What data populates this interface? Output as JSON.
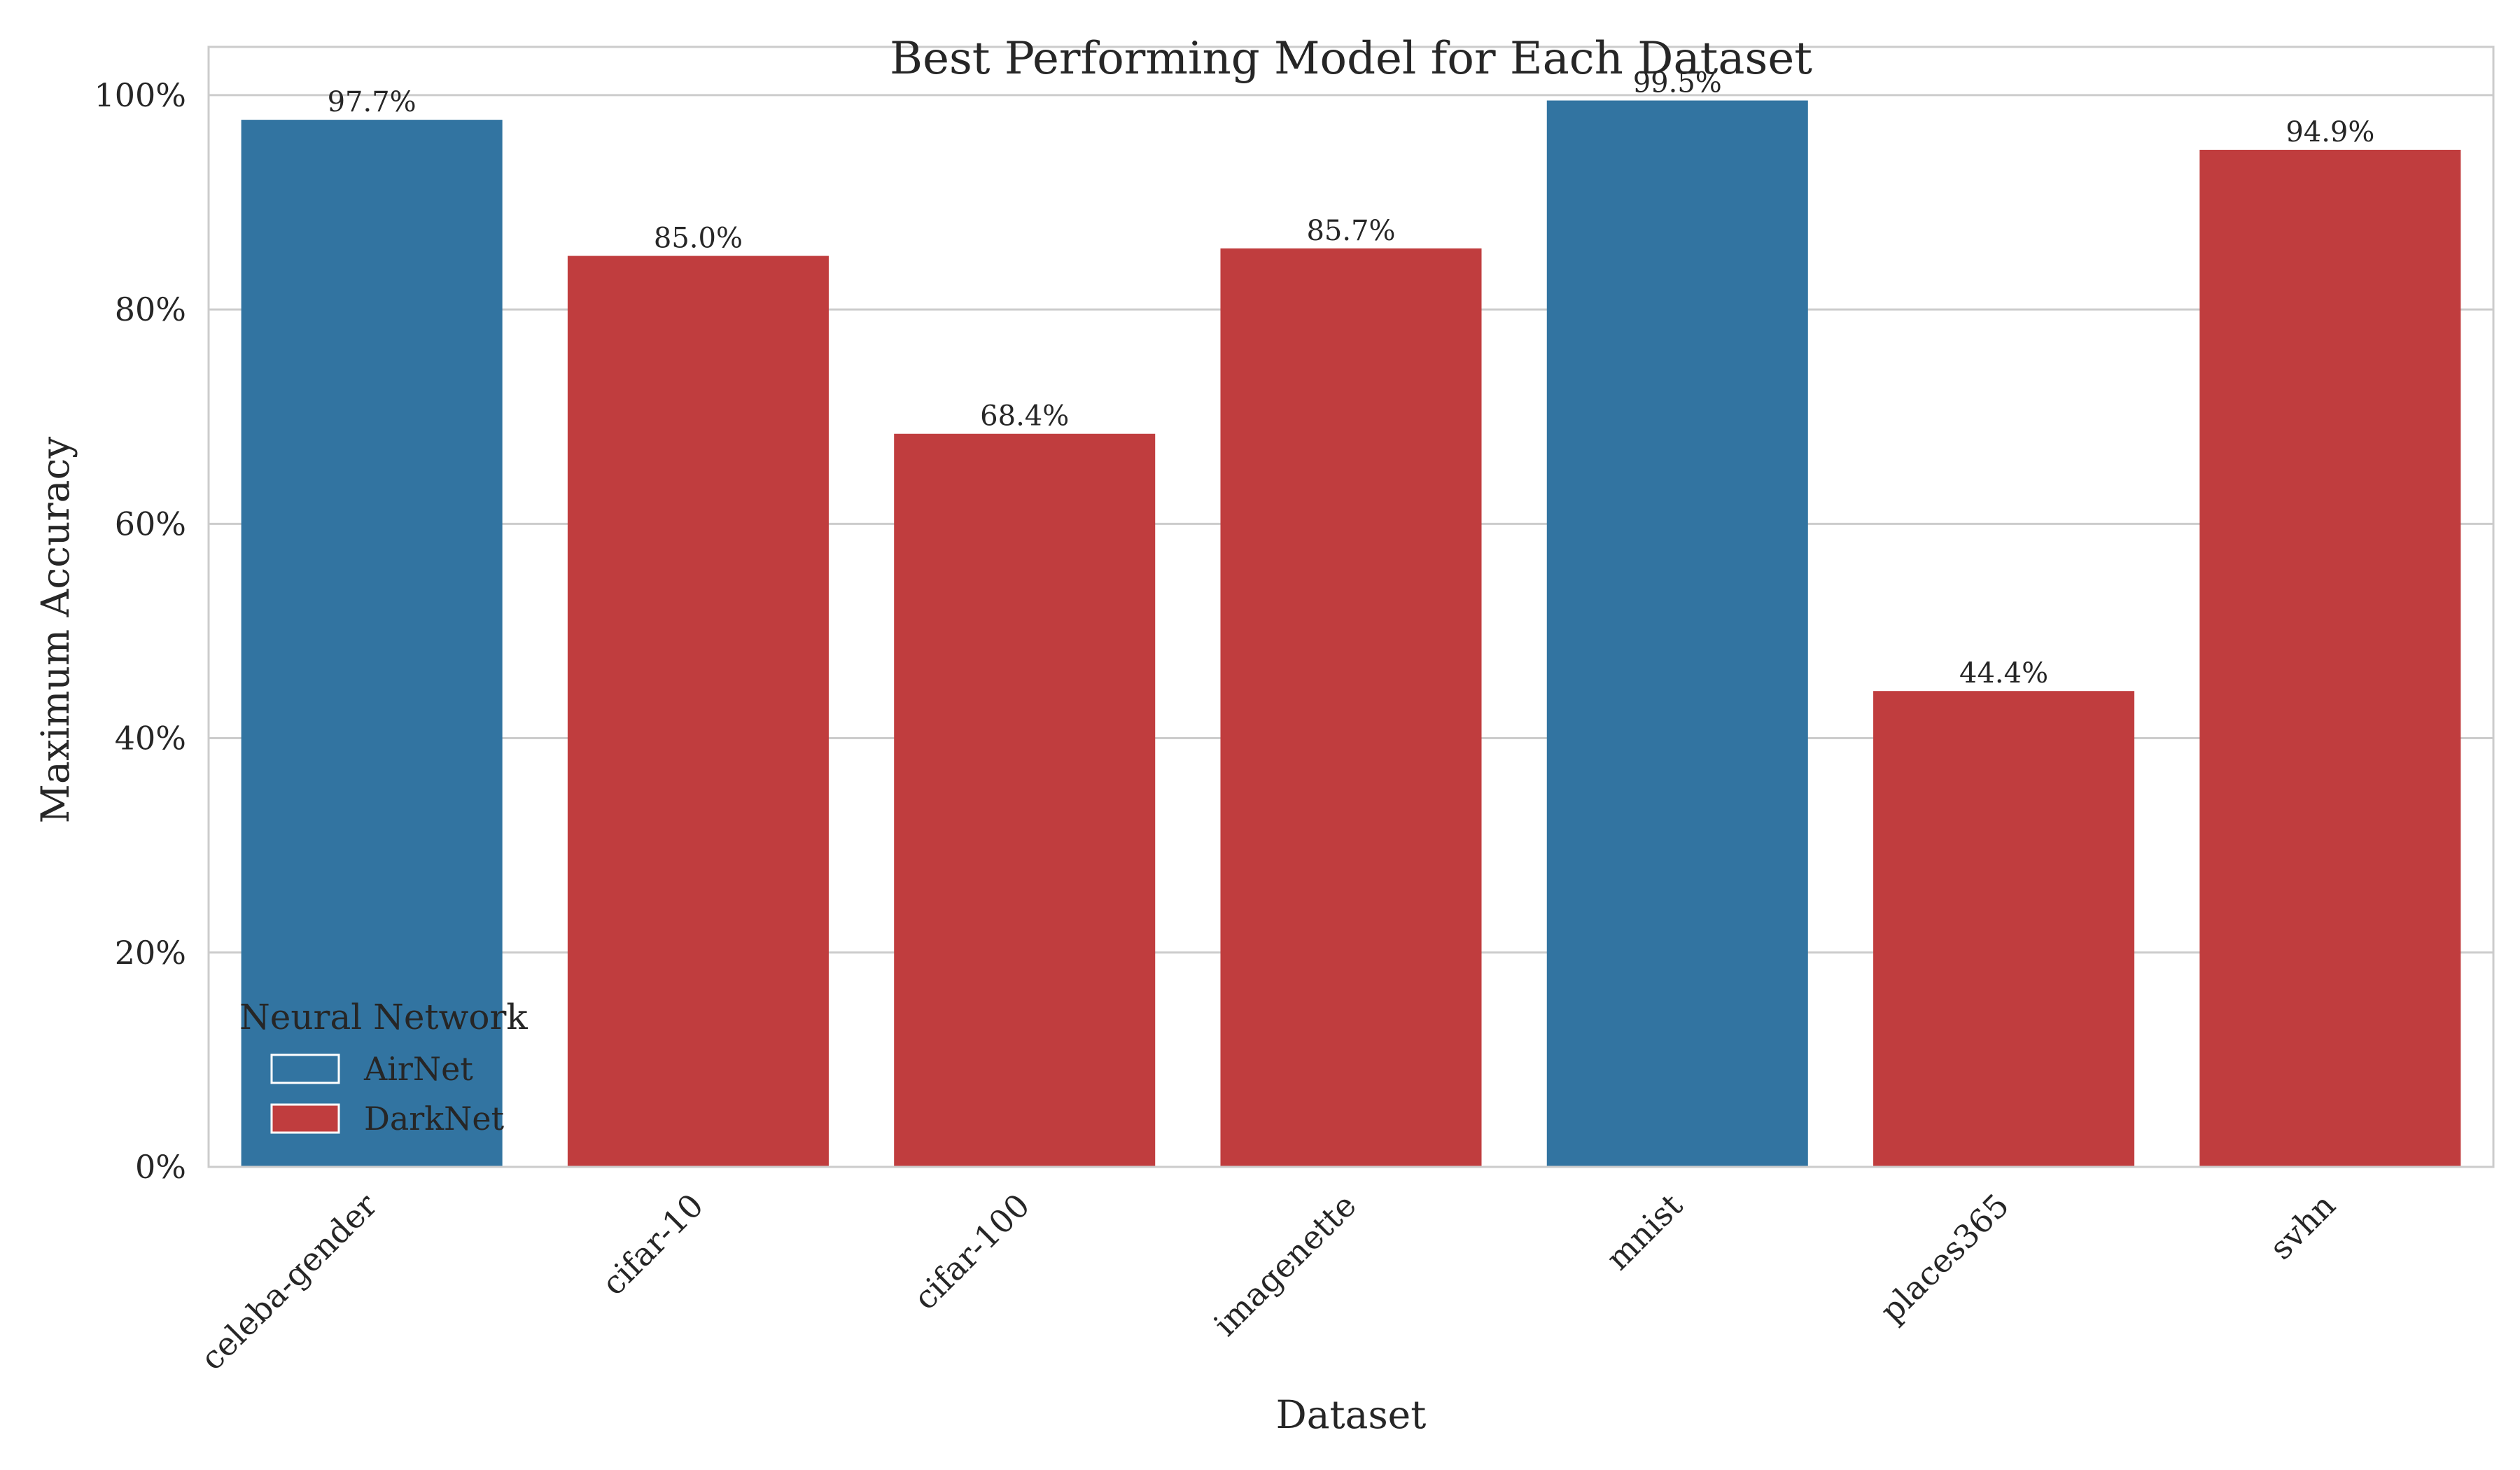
{
  "chart_data": {
    "type": "bar",
    "title": "Best Performing Model for Each Dataset",
    "xlabel": "Dataset",
    "ylabel": "Maximum Accuracy",
    "categories": [
      "celeba-gender",
      "cifar-10",
      "cifar-100",
      "imagenette",
      "mnist",
      "places365",
      "svhn"
    ],
    "values": [
      97.7,
      85.0,
      68.4,
      85.7,
      99.5,
      44.4,
      94.9
    ],
    "value_labels": [
      "97.7%",
      "85.0%",
      "68.4%",
      "85.7%",
      "99.5%",
      "44.4%",
      "94.9%"
    ],
    "bar_series": [
      "AirNet",
      "DarkNet",
      "DarkNet",
      "DarkNet",
      "AirNet",
      "DarkNet",
      "DarkNet"
    ],
    "ylim": [
      0,
      104.5
    ],
    "y_ticks": [
      0,
      20,
      40,
      60,
      80,
      100
    ],
    "y_tick_labels": [
      "0%",
      "20%",
      "40%",
      "60%",
      "80%",
      "100%"
    ],
    "grid": "horizontal",
    "legend": {
      "title": "Neural Network",
      "placement": "lower-left",
      "entries": [
        {
          "name": "AirNet",
          "color": "#3274a1"
        },
        {
          "name": "DarkNet",
          "color": "#c03d3e"
        }
      ]
    },
    "colors": {
      "AirNet": "#3274a1",
      "DarkNet": "#c03d3e"
    }
  }
}
